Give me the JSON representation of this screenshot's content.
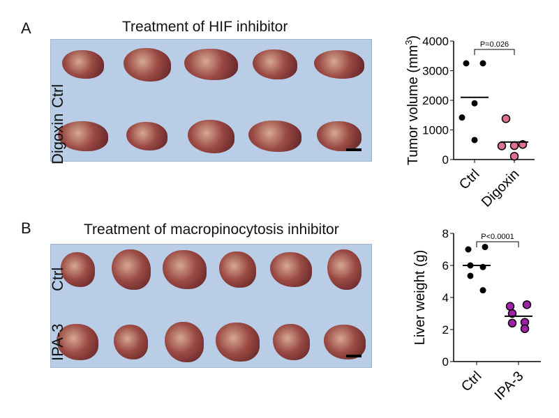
{
  "panels": [
    {
      "label": "A",
      "title": "Treatment of HIF inhibitor",
      "rows": [
        "Ctrl",
        "Digoxin"
      ],
      "photo_background": "#b9cde6"
    },
    {
      "label": "B",
      "title": "Treatment of macropinocytosis inhibitor",
      "rows": [
        "Ctrl",
        "IPA-3"
      ],
      "photo_background": "#b9cde6"
    }
  ],
  "chart_data": [
    {
      "type": "scatter",
      "ylabel": "Tumor volume (mm3)",
      "ylim": [
        0,
        4000
      ],
      "yticks": [
        "0",
        "1000",
        "2000",
        "3000",
        "4000"
      ],
      "categories": [
        "Ctrl",
        "Digoxin"
      ],
      "series": [
        {
          "values": [
            3250,
            3250,
            1900,
            1420,
            660
          ],
          "mean": 2100,
          "color": "#000000"
        },
        {
          "values": [
            1380,
            510,
            470,
            460,
            110
          ],
          "mean": 590,
          "color": "#e07090"
        }
      ],
      "annotation": "P=0.026"
    },
    {
      "type": "scatter",
      "ylabel": "Liver weight (g)",
      "ylim": [
        0,
        8
      ],
      "yticks": [
        "0",
        "2",
        "4",
        "6",
        "8"
      ],
      "categories": [
        "Ctrl",
        "IPA-3"
      ],
      "series": [
        {
          "values": [
            7.0,
            7.15,
            6.0,
            5.9,
            5.35,
            4.45
          ],
          "mean": 6.0,
          "color": "#000000"
        },
        {
          "values": [
            3.45,
            3.55,
            3.0,
            2.45,
            2.4,
            2.05
          ],
          "mean": 2.83,
          "color": "#a020a8"
        }
      ],
      "annotation": "P<0.0001"
    }
  ]
}
